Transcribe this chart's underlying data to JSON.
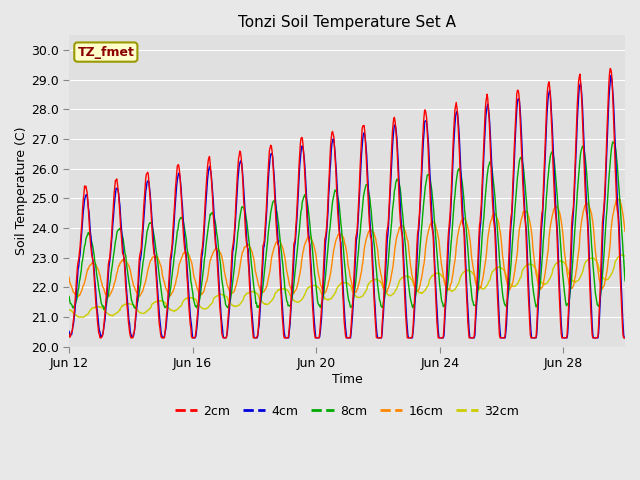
{
  "title": "Tonzi Soil Temperature Set A",
  "xlabel": "Time",
  "ylabel": "Soil Temperature (C)",
  "ylim": [
    20.0,
    30.5
  ],
  "yticks": [
    20.0,
    21.0,
    22.0,
    23.0,
    24.0,
    25.0,
    26.0,
    27.0,
    28.0,
    29.0,
    30.0
  ],
  "annotation": "TZ_fmet",
  "plot_bg_color": "#e0e0e0",
  "fig_bg_color": "#e8e8e8",
  "series_colors": {
    "2cm": "#ff0000",
    "4cm": "#0000dd",
    "8cm": "#00aa00",
    "16cm": "#ff8800",
    "32cm": "#cccc00"
  },
  "x_tick_days": [
    12,
    16,
    20,
    24,
    28
  ],
  "n_points_per_day": 48,
  "n_days": 18,
  "figsize": [
    6.4,
    4.8
  ],
  "dpi": 100
}
